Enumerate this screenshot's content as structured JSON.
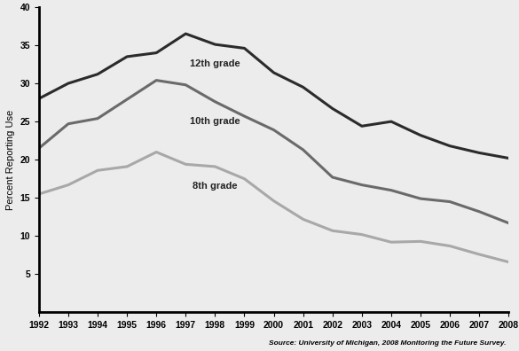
{
  "chart_data": {
    "type": "line",
    "y_label": "Percent Reporting Use",
    "annotations": [
      "Source: University of Michigan, 2008 Monitoring the Future Survey."
    ],
    "x": [
      1992,
      1993,
      1994,
      1995,
      1996,
      1997,
      1998,
      1999,
      2000,
      2001,
      2002,
      2003,
      2004,
      2005,
      2006,
      2007,
      2008
    ],
    "xlim": [
      1992,
      2008
    ],
    "xticks": [
      1992,
      1993,
      1994,
      1995,
      1996,
      1997,
      1998,
      1999,
      2000,
      2001,
      2002,
      2003,
      2004,
      2005,
      2006,
      2007,
      2008
    ],
    "ylim": [
      0,
      40
    ],
    "yticks": [
      5,
      10,
      15,
      20,
      25,
      30,
      35,
      40
    ],
    "grid": false,
    "series": [
      {
        "name": "12th grade",
        "color": "#2b2b2b",
        "values": [
          28.0,
          30.0,
          31.2,
          33.5,
          34.0,
          36.5,
          35.1,
          34.6,
          31.4,
          29.5,
          26.7,
          24.4,
          25.0,
          23.2,
          21.8,
          20.9,
          20.2
        ]
      },
      {
        "name": "10th grade",
        "color": "#6a6a6a",
        "values": [
          21.5,
          24.7,
          25.4,
          27.9,
          30.4,
          29.8,
          27.6,
          25.7,
          23.9,
          21.3,
          17.7,
          16.7,
          16.0,
          14.9,
          14.5,
          13.2,
          11.7
        ]
      },
      {
        "name": "8th grade",
        "color": "#a8a8a8",
        "values": [
          15.5,
          16.7,
          18.6,
          19.1,
          21.0,
          19.4,
          19.1,
          17.5,
          14.6,
          12.2,
          10.7,
          10.2,
          9.2,
          9.3,
          8.7,
          7.6,
          6.6
        ]
      }
    ]
  }
}
